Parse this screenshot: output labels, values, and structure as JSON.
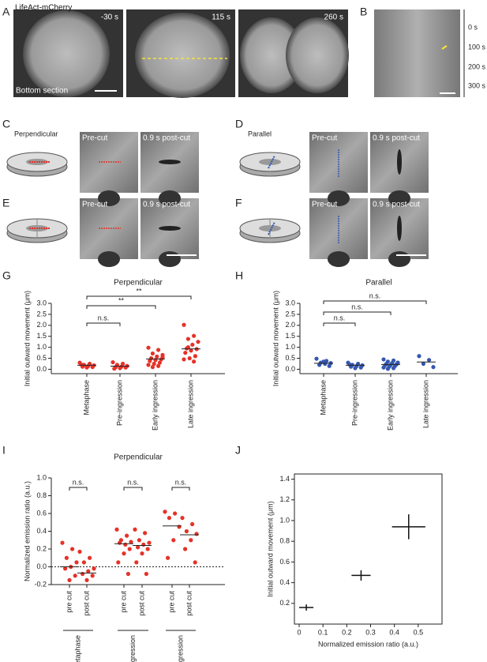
{
  "panels": {
    "A": {
      "letter": "A",
      "label": "LifeAct-mCherry",
      "times": [
        "-30 s",
        "115 s",
        "260 s"
      ],
      "section": "Bottom section"
    },
    "B": {
      "letter": "B",
      "times": [
        "0 s",
        "100 s",
        "200 s",
        "300 s"
      ]
    },
    "C": {
      "letter": "C",
      "label": "Perpendicular",
      "pre": "Pre-cut",
      "post": "0.9 s post-cut"
    },
    "D": {
      "letter": "D",
      "label": "Parallel",
      "pre": "Pre-cut",
      "post": "0.9 s post-cut"
    },
    "E": {
      "letter": "E",
      "pre": "Pre-cut",
      "post": "0.9 s post-cut"
    },
    "F": {
      "letter": "F",
      "pre": "Pre-cut",
      "post": "0.9 s post-cut"
    }
  },
  "chart_data": [
    {
      "type": "strip",
      "letter": "G",
      "title": "Perpendicular",
      "y_label": "Initial outward movement (μm)",
      "color": "#e53228",
      "categories": [
        "Metaphase",
        "Pre-ingression",
        "Early ingression",
        "Late ingression"
      ],
      "values": [
        [
          0.3,
          0.25,
          0.2,
          0.18,
          0.15,
          0.12,
          0.1,
          0.08,
          0.22
        ],
        [
          0.32,
          0.25,
          0.2,
          0.15,
          0.12,
          0.1,
          0.08,
          0.05,
          0.03
        ],
        [
          0.98,
          0.88,
          0.72,
          0.65,
          0.58,
          0.5,
          0.45,
          0.42,
          0.38,
          0.3,
          0.25,
          0.2,
          0.15,
          0.1,
          0.55
        ],
        [
          2.02,
          1.52,
          1.38,
          1.25,
          1.12,
          0.95,
          0.92,
          0.85,
          0.75,
          0.6,
          0.5,
          0.45,
          0.35,
          1.0
        ]
      ],
      "means": [
        0.18,
        0.14,
        0.47,
        0.93
      ],
      "ylim": [
        -0.2,
        3.0
      ],
      "yticks": [
        {
          "value": 0,
          "label": "0.0"
        },
        0.5,
        {
          "value": 1,
          "label": "1.0"
        },
        1.5,
        {
          "value": 2,
          "label": "2.0"
        },
        2.5,
        {
          "value": 3,
          "label": "3.0"
        }
      ],
      "annotations": [
        {
          "label": "n.s.",
          "from": "Metaphase",
          "to": "Pre-ingression"
        },
        {
          "label": "**",
          "from": "Metaphase",
          "to": "Early ingression"
        },
        {
          "label": "**",
          "from": "Metaphase",
          "to": "Late ingression"
        }
      ]
    },
    {
      "type": "strip",
      "letter": "H",
      "title": "Parallel",
      "y_label": "Initial outward movement (μm)",
      "color": "#3557b0",
      "categories": [
        "Metaphase",
        "Pre-ingression",
        "Early ingression",
        "Late ingression"
      ],
      "values": [
        [
          0.48,
          0.38,
          0.3,
          0.28,
          0.25,
          0.2,
          0.15,
          0.35
        ],
        [
          0.3,
          0.25,
          0.2,
          0.18,
          0.15,
          0.12,
          0.08,
          0.05,
          0.22
        ],
        [
          0.45,
          0.4,
          0.35,
          0.3,
          0.28,
          0.25,
          0.22,
          0.2,
          0.18,
          0.15,
          0.12,
          0.08,
          0.05,
          0.02,
          0.3
        ],
        [
          0.6,
          0.42,
          0.25,
          0.1
        ]
      ],
      "means": [
        0.27,
        0.18,
        0.22,
        0.33
      ],
      "ylim": [
        -0.2,
        3.0
      ],
      "yticks": [
        {
          "value": 0,
          "label": "0.0"
        },
        0.5,
        {
          "value": 1,
          "label": "1.0"
        },
        1.5,
        {
          "value": 2,
          "label": "2.0"
        },
        2.5,
        {
          "value": 3,
          "label": "3.0"
        }
      ],
      "annotations": [
        {
          "label": "n.s.",
          "from": "Metaphase",
          "to": "Pre-ingression"
        },
        {
          "label": "n.s.",
          "from": "Metaphase",
          "to": "Early ingression"
        },
        {
          "label": "n.s.",
          "from": "Metaphase",
          "to": "Late ingression"
        }
      ]
    },
    {
      "type": "grouped_strip",
      "letter": "I",
      "title": "Perpendicular",
      "y_label": "Normalized emission ratio (a.u.)",
      "color": "#e53228",
      "groups": [
        {
          "name": "Metaphase",
          "categories": [
            "pre cut",
            "post cut"
          ],
          "annotation": "n.s.",
          "values": [
            [
              0.27,
              0.2,
              0.1,
              0.05,
              0,
              -0.02,
              -0.1,
              -0.15
            ],
            [
              0.17,
              0.1,
              0.05,
              -0.02,
              -0.05,
              -0.08,
              -0.1,
              -0.15
            ]
          ],
          "means": [
            0.0,
            -0.07
          ]
        },
        {
          "name": "Early ingression",
          "categories": [
            "pre cut",
            "post cut"
          ],
          "annotation": "n.s.",
          "values": [
            [
              0.42,
              0.35,
              0.3,
              0.28,
              0.25,
              0.27,
              0.2,
              0.15,
              0.05,
              -0.08
            ],
            [
              0.42,
              0.38,
              0.3,
              0.27,
              0.25,
              0.22,
              0.2,
              0.15,
              0.05,
              -0.08
            ]
          ],
          "means": [
            0.26,
            0.24
          ]
        },
        {
          "name": "Late ingression",
          "categories": [
            "pre cut",
            "post cut"
          ],
          "annotation": "n.s.",
          "values": [
            [
              0.62,
              0.6,
              0.55,
              0.45,
              0.3,
              0.1
            ],
            [
              0.55,
              0.48,
              0.4,
              0.37,
              0.3,
              0.2,
              0.05
            ]
          ],
          "means": [
            0.46,
            0.36
          ]
        }
      ],
      "ylim": [
        -0.2,
        1.0
      ],
      "yticks": [
        -0.2,
        {
          "value": 0,
          "label": "0.0"
        },
        0.2,
        0.4,
        0.6,
        0.8,
        {
          "value": 1,
          "label": "1.0"
        }
      ],
      "reference_line": 0
    },
    {
      "type": "errorbar_scatter",
      "letter": "J",
      "x_label": "Normalized emission ratio (a.u.)",
      "y_label": "Initial outward movement (μm)",
      "color": "#111111",
      "x": [
        0.03,
        0.26,
        0.46
      ],
      "values": [
        0.16,
        0.47,
        0.94
      ],
      "xerr": [
        0.03,
        0.04,
        0.07
      ],
      "yerr": [
        0.03,
        0.05,
        0.12
      ],
      "xlim": [
        -0.02,
        0.6
      ],
      "ylim": [
        0,
        1.45
      ],
      "xticks": [
        0,
        0.1,
        0.2,
        0.3,
        0.4,
        0.5
      ],
      "yticks": [
        0.2,
        0.4,
        0.6,
        0.8,
        {
          "value": 1,
          "label": "1.0"
        },
        1.2,
        1.4
      ]
    }
  ]
}
